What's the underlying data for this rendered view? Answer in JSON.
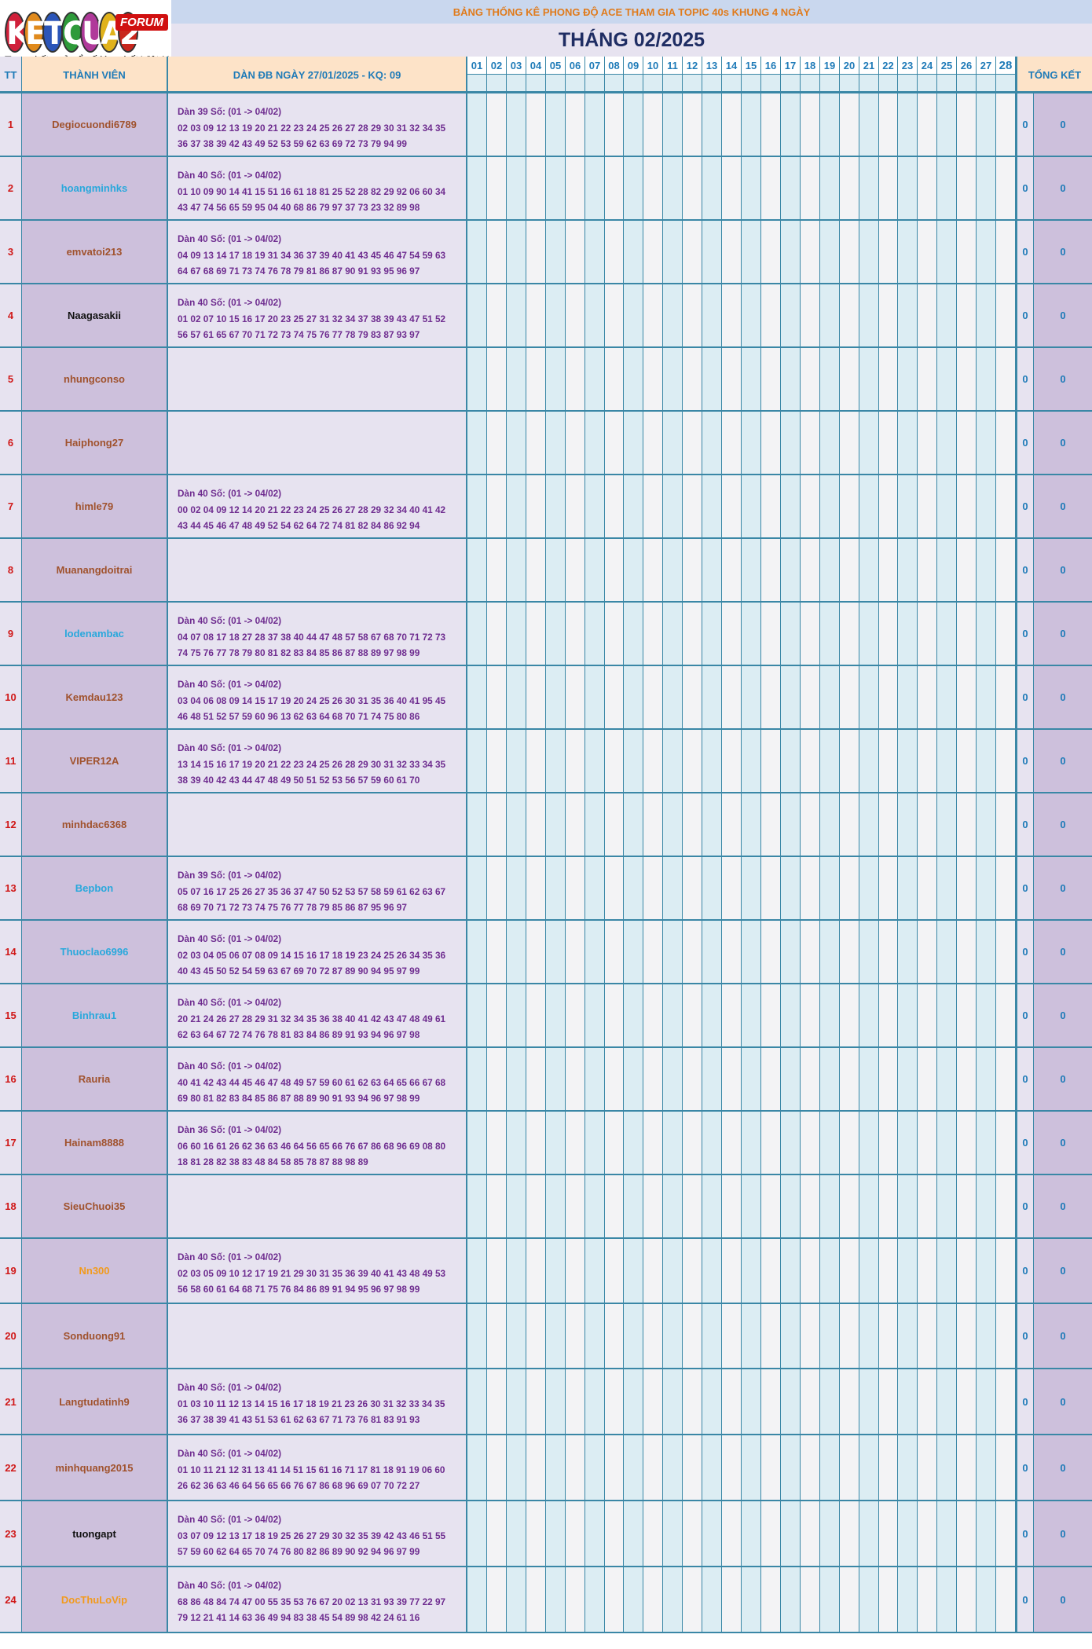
{
  "logo": {
    "letters": [
      "K",
      "E",
      "T",
      "Q",
      "U",
      "A",
      "2"
    ],
    "letter_colors": [
      "#d0203a",
      "#e08a1c",
      "#2b55b8",
      "#2e9a3a",
      "#b03a9a",
      "#e0b21c",
      "#c8261c"
    ],
    "badge": "FORUM",
    "tagline": "Trang kết quả xổ số lớn nhất Việt Nam"
  },
  "banner": "BẢNG THỐNG KÊ PHONG ĐỘ ACE THAM GIA TOPIC 40s KHUNG 4 NGÀY",
  "month_title": "THÁNG 02/2025",
  "headers": {
    "tt": "TT",
    "member": "THÀNH VIÊN",
    "dan": "DÀN ĐB NGÀY 27/01/2025 - KQ: 09",
    "total": "TỔNG KẾT"
  },
  "days": [
    "01",
    "02",
    "03",
    "04",
    "05",
    "06",
    "07",
    "08",
    "09",
    "10",
    "11",
    "12",
    "13",
    "14",
    "15",
    "16",
    "17",
    "18",
    "19",
    "20",
    "21",
    "22",
    "23",
    "24",
    "25",
    "26",
    "27",
    "28"
  ],
  "colors": {
    "name_brown": "#a0522d",
    "name_blue": "#29a8dc",
    "name_black": "#111111",
    "name_orange": "#f29a1c",
    "cell_blue": "#dcedf3",
    "cell_gray": "#f3f3f5"
  },
  "rows": [
    {
      "tt": "1",
      "name": "Degiocuondi6789",
      "color": "brown",
      "dan_title": "Dàn 39 Số: (01 -> 04/02)",
      "line1": "02 03 09 12 13 19 20 21 22 23 24 25 26 27 28 29 30 31 32 34 35",
      "line2": "36 37 38 39 42 43 49 52 53 59 62 63 69 72 73 79 94 99",
      "score1": "0",
      "score2": "0"
    },
    {
      "tt": "2",
      "name": "hoangminhks",
      "color": "blue",
      "dan_title": "Dàn 40 Số: (01 -> 04/02)",
      "line1": "01 10 09 90 14 41 15 51 16 61 18 81 25 52 28 82 29 92 06 60 34",
      "line2": "43 47 74 56 65 59 95 04 40 68 86 79 97 37 73 23 32 89 98",
      "score1": "0",
      "score2": "0"
    },
    {
      "tt": "3",
      "name": "emvatoi213",
      "color": "brown",
      "dan_title": "Dàn 40 Số: (01 -> 04/02)",
      "line1": "04 09 13 14 17 18 19 31 34 36 37 39 40 41 43 45 46 47 54 59 63",
      "line2": "64 67 68 69 71 73 74 76 78 79 81 86 87 90 91 93 95 96 97",
      "score1": "0",
      "score2": "0"
    },
    {
      "tt": "4",
      "name": "Naagasakii",
      "color": "black",
      "dan_title": "Dàn 40 Số: (01 -> 04/02)",
      "line1": "01 02 07 10 15 16 17 20 23 25 27 31 32 34 37 38 39 43 47 51 52",
      "line2": "56 57 61 65 67 70 71 72 73 74 75 76 77 78 79 83 87 93 97",
      "score1": "0",
      "score2": "0"
    },
    {
      "tt": "5",
      "name": "nhungconso",
      "color": "brown",
      "dan_title": "",
      "line1": "",
      "line2": "",
      "score1": "0",
      "score2": "0"
    },
    {
      "tt": "6",
      "name": "Haiphong27",
      "color": "brown",
      "dan_title": "",
      "line1": "",
      "line2": "",
      "score1": "0",
      "score2": "0"
    },
    {
      "tt": "7",
      "name": "himle79",
      "color": "brown",
      "dan_title": "Dàn 40 Số: (01 -> 04/02)",
      "line1": "00 02 04 09 12 14 20 21 22 23 24 25 26 27 28 29 32 34 40 41 42",
      "line2": "43 44 45 46 47 48 49 52 54 62 64 72 74 81 82 84 86 92 94",
      "score1": "0",
      "score2": "0"
    },
    {
      "tt": "8",
      "name": "Muanangdoitrai",
      "color": "brown",
      "dan_title": "",
      "line1": "",
      "line2": "",
      "score1": "0",
      "score2": "0"
    },
    {
      "tt": "9",
      "name": "lodenambac",
      "color": "blue",
      "dan_title": "Dàn 40 Số: (01 -> 04/02)",
      "line1": "04 07 08 17 18 27 28 37 38 40 44 47 48 57 58 67 68 70 71 72 73",
      "line2": "74 75 76 77 78 79 80 81 82 83 84 85 86 87 88 89 97 98 99",
      "score1": "0",
      "score2": "0"
    },
    {
      "tt": "10",
      "name": "Kemdau123",
      "color": "brown",
      "dan_title": "Dàn 40 Số: (01 -> 04/02)",
      "line1": "03 04 06 08 09 14 15 17 19 20 24 25 26 30 31 35 36 40 41 95 45",
      "line2": "46 48 51 52 57 59 60 96 13 62 63 64 68 70 71 74 75 80 86",
      "score1": "0",
      "score2": "0"
    },
    {
      "tt": "11",
      "name": "VIPER12A",
      "color": "brown",
      "dan_title": "Dàn 40 Số: (01 -> 04/02)",
      "line1": "13 14 15 16 17 19 20 21 22 23 24 25 26 28 29 30 31 32 33 34 35",
      "line2": "38 39 40 42 43 44 47 48 49 50 51 52 53 56 57 59 60 61 70",
      "score1": "0",
      "score2": "0"
    },
    {
      "tt": "12",
      "name": "minhdac6368",
      "color": "brown",
      "dan_title": "",
      "line1": "",
      "line2": "",
      "score1": "0",
      "score2": "0"
    },
    {
      "tt": "13",
      "name": "Bepbon",
      "color": "blue",
      "dan_title": "Dàn 39 Số: (01 -> 04/02)",
      "line1": "05 07 16 17 25 26 27 35 36 37 47 50 52 53 57 58 59 61 62 63 67",
      "line2": "68 69 70 71 72 73 74 75 76 77 78 79 85 86 87 95 96 97",
      "score1": "0",
      "score2": "0"
    },
    {
      "tt": "14",
      "name": "Thuoclao6996",
      "color": "blue",
      "dan_title": "Dàn 40 Số: (01 -> 04/02)",
      "line1": "02 03 04 05 06 07 08 09 14 15 16 17 18 19 23 24 25 26 34 35 36",
      "line2": "40 43 45 50 52 54 59 63 67 69 70 72 87 89 90 94 95 97 99",
      "score1": "0",
      "score2": "0"
    },
    {
      "tt": "15",
      "name": "Binhrau1",
      "color": "blue",
      "dan_title": "Dàn 40 Số: (01 -> 04/02)",
      "line1": "20 21 24 26 27 28 29 31 32 34 35 36 38 40 41 42 43 47 48 49 61",
      "line2": "62 63 64 67 72 74 76 78 81 83 84 86 89 91 93 94 96 97 98",
      "score1": "0",
      "score2": "0"
    },
    {
      "tt": "16",
      "name": "Rauria",
      "color": "brown",
      "dan_title": "Dàn 40 Số: (01 -> 04/02)",
      "line1": "40 41 42 43 44 45 46 47 48 49 57 59 60 61 62 63 64 65 66 67 68",
      "line2": "69 80 81 82 83 84 85 86 87 88 89 90 91 93 94 96 97 98 99",
      "score1": "0",
      "score2": "0"
    },
    {
      "tt": "17",
      "name": "Hainam8888",
      "color": "brown",
      "dan_title": "Dàn 36 Số: (01 -> 04/02)",
      "line1": "06 60 16 61 26 62 36 63 46 64 56 65 66 76 67 86 68 96 69 08 80",
      "line2": "18 81 28 82 38 83 48 84 58 85 78 87 88 98 89",
      "score1": "0",
      "score2": "0"
    },
    {
      "tt": "18",
      "name": "SieuChuoi35",
      "color": "brown",
      "dan_title": "",
      "line1": "",
      "line2": "",
      "score1": "0",
      "score2": "0"
    },
    {
      "tt": "19",
      "name": "Nn300",
      "color": "orange",
      "dan_title": "Dàn 40 Số: (01 -> 04/02)",
      "line1": "02 03 05 09 10 12 17 19 21 29 30 31 35 36 39 40 41 43 48 49 53",
      "line2": "56 58 60 61 64 68 71 75 76 84 86 89 91 94 95 96 97 98 99",
      "score1": "0",
      "score2": "0"
    },
    {
      "tt": "20",
      "name": "Sonduong91",
      "color": "brown",
      "dan_title": "",
      "line1": "",
      "line2": "",
      "score1": "0",
      "score2": "0"
    },
    {
      "tt": "21",
      "name": "Langtudatinh9",
      "color": "brown",
      "dan_title": "Dàn 40 Số: (01 -> 04/02)",
      "line1": "01 03 10 11 12 13 14 15 16 17 18 19 21 23 26 30 31 32 33 34 35",
      "line2": "36 37 38 39 41 43 51 53 61 62 63 67 71 73 76 81 83 91 93",
      "score1": "0",
      "score2": "0"
    },
    {
      "tt": "22",
      "name": "minhquang2015",
      "color": "brown",
      "dan_title": "Dàn 40 Số: (01 -> 04/02)",
      "line1": "01 10 11 21 12 31 13 41 14 51 15 61 16 71 17 81 18 91 19 06 60",
      "line2": "26 62 36 63 46 64 56 65 66 76 67 86 68 96 69 07 70 72 27",
      "score1": "0",
      "score2": "0"
    },
    {
      "tt": "23",
      "name": "tuongapt",
      "color": "black",
      "dan_title": "Dàn 40 Số: (01 -> 04/02)",
      "line1": "03 07 09 12 13 17 18 19 25 26 27 29 30 32 35 39 42 43 46 51 55",
      "line2": "57 59 60 62 64 65 70 74 76 80 82 86 89 90 92 94 96 97 99",
      "score1": "0",
      "score2": "0"
    },
    {
      "tt": "24",
      "name": "DocThuLoVip",
      "color": "orange",
      "dan_title": "Dàn 40 Số: (01 -> 04/02)",
      "line1": "68 86 48 84 74 47 00 55 35 53 76 67 20 02 13 31 93 39 77 22 97",
      "line2": "79 12 21 41 14 63 36 49 94 83 38 45 54 89 98 42 24 61 16",
      "score1": "0",
      "score2": "0"
    }
  ]
}
